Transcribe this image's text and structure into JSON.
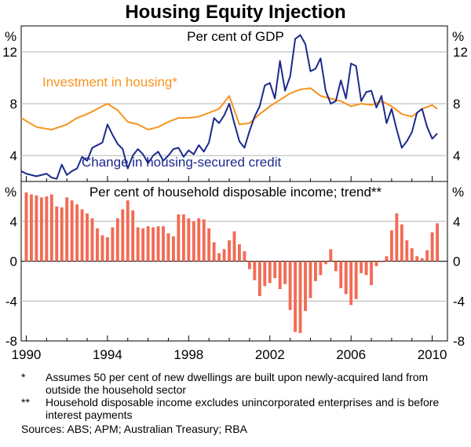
{
  "chart_data": {
    "type": "line",
    "title": "Housing Equity Injection",
    "x_ticks": [
      "1990",
      "1994",
      "1998",
      "2002",
      "2006",
      "2010"
    ],
    "x_range": [
      1989.75,
      2010.75
    ],
    "panels": [
      {
        "id": "top",
        "subtitle": "Per cent of GDP",
        "unit_left": "%",
        "unit_right": "%",
        "ylim": [
          2,
          14
        ],
        "y_ticks": [
          "4",
          "8",
          "12"
        ],
        "y_tick_values": [
          4,
          8,
          12
        ],
        "series": [
          {
            "name": "Investment in housing*",
            "color": "#f7941d",
            "x": [
              1989.75,
              1990.5,
              1991.25,
              1992,
              1992.5,
              1993,
              1993.5,
              1994,
              1994.5,
              1995,
              1995.5,
              1996,
              1996.5,
              1997,
              1997.5,
              1998,
              1998.5,
              1999,
              1999.5,
              2000,
              2000.5,
              2001,
              2001.5,
              2002,
              2002.5,
              2003,
              2003.5,
              2004,
              2004.5,
              2005,
              2005.5,
              2006,
              2006.5,
              2007,
              2007.5,
              2008,
              2008.5,
              2009,
              2009.5,
              2010,
              2010.25
            ],
            "values": [
              6.9,
              6.2,
              6.0,
              6.4,
              6.9,
              7.2,
              7.6,
              8.0,
              7.5,
              6.6,
              6.4,
              6.0,
              6.2,
              6.6,
              6.9,
              6.9,
              7.0,
              7.3,
              7.6,
              8.6,
              6.4,
              6.5,
              7.2,
              7.8,
              8.3,
              8.8,
              9.1,
              9.2,
              8.6,
              8.4,
              8.2,
              7.8,
              8.0,
              7.9,
              8.2,
              7.8,
              7.2,
              7.0,
              7.6,
              7.9,
              7.6
            ]
          },
          {
            "name": "Change in housing-secured credit",
            "color": "#1c2a8c",
            "x": [
              1989.75,
              1990,
              1990.5,
              1991,
              1991.25,
              1991.5,
              1991.75,
              1992,
              1992.25,
              1992.5,
              1992.75,
              1993,
              1993.25,
              1993.5,
              1993.75,
              1994,
              1994.25,
              1994.5,
              1994.75,
              1995,
              1995.25,
              1995.5,
              1995.75,
              1996,
              1996.25,
              1996.5,
              1996.75,
              1997,
              1997.25,
              1997.5,
              1997.75,
              1998,
              1998.25,
              1998.5,
              1998.75,
              1999,
              1999.25,
              1999.5,
              1999.75,
              2000,
              2000.25,
              2000.5,
              2000.75,
              2001,
              2001.25,
              2001.5,
              2001.75,
              2002,
              2002.25,
              2002.5,
              2002.75,
              2003,
              2003.25,
              2003.5,
              2003.75,
              2004,
              2004.25,
              2004.5,
              2004.75,
              2005,
              2005.25,
              2005.5,
              2005.75,
              2006,
              2006.25,
              2006.5,
              2006.75,
              2007,
              2007.25,
              2007.5,
              2007.75,
              2008,
              2008.25,
              2008.5,
              2008.75,
              2009,
              2009.25,
              2009.5,
              2009.75,
              2010,
              2010.25
            ],
            "values": [
              2.8,
              2.6,
              2.4,
              2.6,
              2.3,
              2.2,
              3.3,
              2.5,
              2.8,
              3.0,
              3.9,
              3.6,
              4.6,
              4.8,
              5.0,
              6.4,
              5.6,
              4.9,
              4.5,
              3.0,
              4.0,
              4.5,
              4.1,
              3.4,
              4.0,
              4.3,
              3.6,
              4.0,
              4.5,
              4.6,
              3.9,
              4.4,
              4.1,
              4.8,
              4.3,
              5.0,
              6.9,
              6.5,
              7.1,
              8.0,
              6.5,
              5.1,
              4.6,
              5.9,
              7.0,
              7.8,
              9.4,
              9.6,
              8.4,
              11.3,
              9.0,
              10.1,
              13.0,
              13.3,
              12.6,
              10.5,
              10.7,
              11.5,
              9.0,
              8.0,
              8.2,
              9.8,
              8.4,
              11.1,
              10.9,
              8.2,
              8.9,
              9.0,
              7.7,
              8.6,
              6.5,
              7.6,
              6.0,
              4.6,
              5.1,
              5.8,
              7.3,
              7.6,
              6.2,
              5.3,
              5.7
            ]
          }
        ]
      },
      {
        "id": "bottom",
        "subtitle": "Per cent of household disposable income; trend**",
        "unit_left": "%",
        "unit_right": "%",
        "ylim": [
          -8,
          8
        ],
        "y_ticks": [
          "4",
          "0",
          "-4",
          "-8"
        ],
        "y_tick_values": [
          4,
          0,
          -4,
          -8
        ],
        "series": [
          {
            "name": "Housing equity injection",
            "type": "bar",
            "color": "#f26b55",
            "x_start": 1990,
            "x_step": 0.25,
            "values": [
              6.9,
              6.7,
              6.6,
              6.4,
              6.5,
              6.7,
              5.5,
              5.4,
              6.4,
              6.1,
              5.7,
              5.2,
              4.8,
              4.3,
              3.3,
              2.6,
              2.4,
              3.4,
              4.3,
              5.2,
              6.1,
              5.1,
              3.4,
              3.3,
              3.5,
              3.4,
              3.5,
              3.5,
              2.8,
              2.5,
              4.7,
              4.7,
              4.3,
              4.0,
              4.3,
              4.2,
              3.3,
              1.9,
              0.8,
              1.2,
              2.1,
              3.0,
              1.7,
              1.0,
              -0.8,
              -1.9,
              -3.5,
              -2.5,
              -2.2,
              -1.7,
              -2.8,
              -2.3,
              -4.9,
              -7.1,
              -7.2,
              -5.0,
              -3.7,
              -2.0,
              -1.4,
              -0.3,
              1.2,
              -1.0,
              -2.7,
              -3.3,
              -4.4,
              -3.8,
              -1.2,
              -1.4,
              -2.4,
              -0.5,
              -0.1,
              0.5,
              3.1,
              4.8,
              3.7,
              2.1,
              1.3,
              0.5,
              0.3,
              1.1,
              2.9,
              3.8
            ]
          }
        ]
      }
    ]
  },
  "notes": [
    {
      "mark": "*",
      "text": "Assumes 50 per cent of new dwellings are built upon newly-acquired land from outside the household sector"
    },
    {
      "mark": "**",
      "text": "Household disposable income excludes unincorporated enterprises and is before interest payments"
    }
  ],
  "source": "Sources: ABS; APM; Australian Treasury; RBA"
}
